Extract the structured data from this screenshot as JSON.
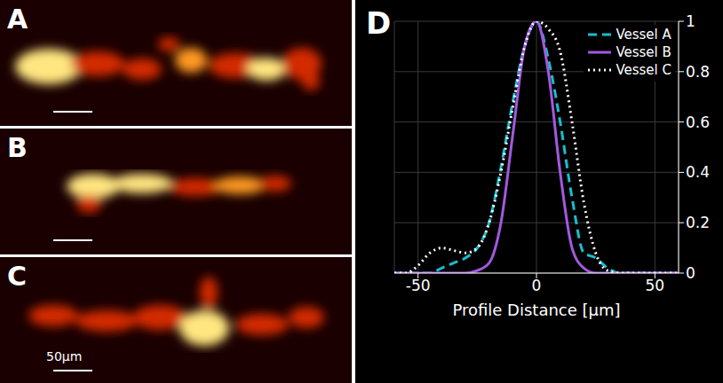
{
  "image_panels": [
    "A",
    "B",
    "C"
  ],
  "scale_bar_label": "50μm",
  "chart_data": {
    "type": "line",
    "panel_label": "D",
    "x_label": "Profile Distance [μm]",
    "x": [
      -60,
      -55,
      -50,
      -45,
      -40,
      -35,
      -30,
      -25,
      -20,
      -15,
      -10,
      -5,
      0,
      5,
      10,
      15,
      20,
      25,
      30,
      35,
      40,
      45,
      50,
      55,
      60
    ],
    "series": [
      {
        "name": "Vessel A",
        "color": "#17becf",
        "line_style": "dashed",
        "values": [
          0,
          0,
          0,
          0,
          0.02,
          0.04,
          0.06,
          0.1,
          0.2,
          0.42,
          0.68,
          0.9,
          1,
          0.85,
          0.6,
          0.3,
          0.08,
          0.06,
          0.02,
          0,
          0,
          0,
          0,
          0,
          0
        ]
      },
      {
        "name": "Vessel B",
        "color": "#a259e0",
        "line_style": "solid",
        "values": [
          0,
          0,
          0,
          0,
          0,
          0,
          0,
          0.01,
          0.04,
          0.2,
          0.55,
          0.9,
          1,
          0.8,
          0.4,
          0.1,
          0.02,
          0,
          0,
          0,
          0,
          0,
          0,
          0,
          0
        ]
      },
      {
        "name": "Vessel C",
        "color": "#ffffff",
        "line_style": "dotted",
        "values": [
          0,
          0,
          0.03,
          0.08,
          0.1,
          0.09,
          0.08,
          0.1,
          0.2,
          0.4,
          0.66,
          0.9,
          1,
          0.97,
          0.88,
          0.6,
          0.28,
          0.08,
          0.01,
          0,
          0,
          0,
          0,
          0,
          0
        ]
      }
    ],
    "xlim": [
      -60,
      60
    ],
    "xticks": [
      -50,
      0,
      50
    ],
    "ylim": [
      0,
      1
    ],
    "yticks": [
      0,
      0.2,
      0.4,
      0.6,
      0.8,
      1
    ],
    "grid": true,
    "legend": "top-right"
  }
}
